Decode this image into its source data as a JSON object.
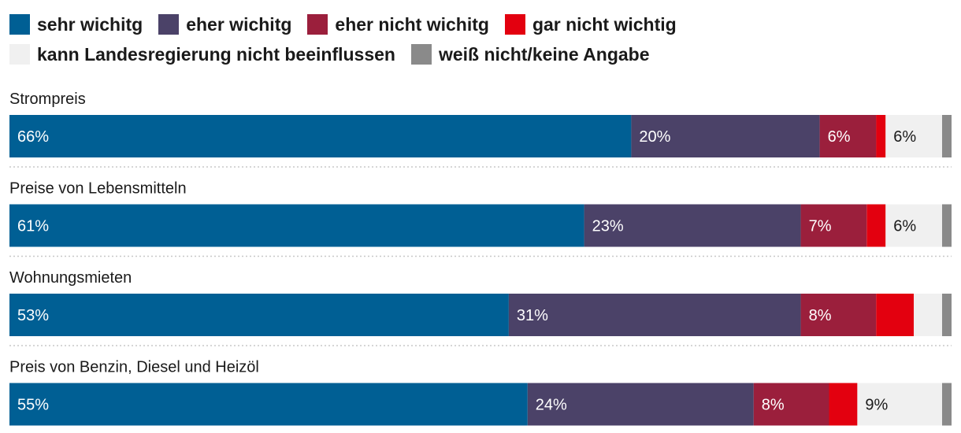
{
  "chart_data": {
    "type": "bar",
    "orientation": "horizontal",
    "stacked": true,
    "categories": [
      "Strompreis",
      "Preise von Lebensmitteln",
      "Wohnungsmieten",
      "Preis von Benzin, Diesel und Heizöl"
    ],
    "series": [
      {
        "name": "sehr wichitg",
        "color": "#005f94",
        "values": [
          66,
          61,
          53,
          55
        ]
      },
      {
        "name": "eher wichitg",
        "color": "#4b4268",
        "values": [
          20,
          23,
          31,
          24
        ]
      },
      {
        "name": "eher nicht wichitg",
        "color": "#9b1f3c",
        "values": [
          6,
          7,
          8,
          8
        ]
      },
      {
        "name": "gar nicht wichtig",
        "color": "#e3000f",
        "values": [
          1,
          2,
          4,
          3
        ]
      },
      {
        "name": "kann Landesregierung nicht beeinflussen",
        "color": "#f0f0f0",
        "values": [
          6,
          6,
          3,
          9
        ]
      },
      {
        "name": "weiß nicht/keine Angabe",
        "color": "#8a8a8a",
        "values": [
          1,
          1,
          1,
          1
        ]
      }
    ],
    "value_labels": [
      [
        "66%",
        "20%",
        "6%",
        "",
        "6%",
        ""
      ],
      [
        "61%",
        "23%",
        "7%",
        "",
        "6%",
        ""
      ],
      [
        "53%",
        "31%",
        "8%",
        "",
        "",
        ""
      ],
      [
        "55%",
        "24%",
        "8%",
        "",
        "9%",
        ""
      ]
    ],
    "xlim": [
      0,
      100
    ],
    "legend_position": "top",
    "title": "",
    "xlabel": "",
    "ylabel": ""
  }
}
